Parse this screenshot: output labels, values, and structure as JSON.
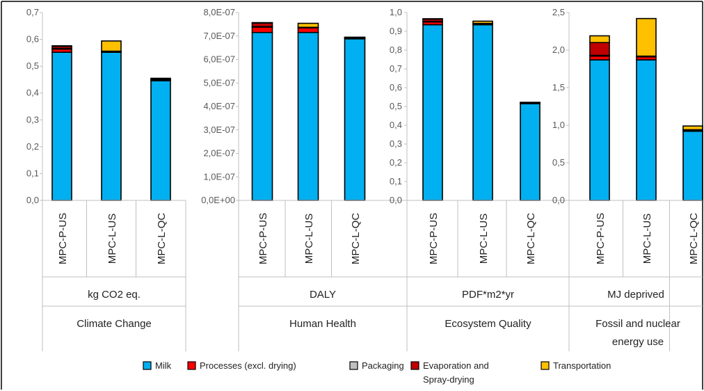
{
  "legend": [
    {
      "name": "Milk",
      "color": "#00B0F0"
    },
    {
      "name": "Processes (excl. drying)",
      "color": "#FF0000"
    },
    {
      "name": "Packaging",
      "color": "#BFBFBF"
    },
    {
      "name": "Evaporation and Spray-drying",
      "color": "#C00000"
    },
    {
      "name": "Transportation",
      "color": "#FFC000"
    }
  ],
  "chart_data": [
    {
      "type": "bar",
      "stacked": true,
      "title": "Climate Change",
      "unit": "kg CO2 eq.",
      "categories": [
        "MPC-P-US",
        "MPC-L-US",
        "MPC-L-QC"
      ],
      "ylim": [
        0,
        0.7
      ],
      "yticks": [
        "0,0",
        "0,1",
        "0,2",
        "0,3",
        "0,4",
        "0,5",
        "0,6",
        "0,7"
      ],
      "series": [
        {
          "name": "Milk",
          "values": [
            0.552,
            0.552,
            0.446
          ]
        },
        {
          "name": "Processes (excl. drying)",
          "values": [
            0.012,
            0.002,
            0.004
          ]
        },
        {
          "name": "Packaging",
          "values": [
            0.002,
            0.002,
            0.002
          ]
        },
        {
          "name": "Evaporation and Spray-drying",
          "values": [
            0.008,
            0.0,
            0.0
          ]
        },
        {
          "name": "Transportation",
          "values": [
            0.002,
            0.038,
            0.003
          ]
        }
      ]
    },
    {
      "type": "bar",
      "stacked": true,
      "title": "Human Health",
      "unit": "DALY",
      "categories": [
        "MPC-P-US",
        "MPC-L-US",
        "MPC-L-QC"
      ],
      "ylim": [
        0,
        8e-07
      ],
      "yticks": [
        "0,0E+00",
        "1,0E-07",
        "2,0E-07",
        "3,0E-07",
        "4,0E-07",
        "5,0E-07",
        "6,0E-07",
        "7,0E-07",
        "8,0E-07"
      ],
      "series": [
        {
          "name": "Milk",
          "values": [
            7.15e-07,
            7.15e-07,
            6.88e-07
          ]
        },
        {
          "name": "Processes (excl. drying)",
          "values": [
            2.3e-08,
            2e-08,
            5e-09
          ]
        },
        {
          "name": "Packaging",
          "values": [
            2e-09,
            2e-09,
            1e-09
          ]
        },
        {
          "name": "Evaporation and Spray-drying",
          "values": [
            1.5e-08,
            0.0,
            0.0
          ]
        },
        {
          "name": "Transportation",
          "values": [
            2e-09,
            1.7e-08,
            1e-09
          ]
        }
      ]
    },
    {
      "type": "bar",
      "stacked": true,
      "title": "Ecosystem Quality",
      "unit": "PDF*m2*yr",
      "categories": [
        "MPC-P-US",
        "MPC-L-US",
        "MPC-L-QC"
      ],
      "ylim": [
        0,
        1.0
      ],
      "yticks": [
        "0,0",
        "0,1",
        "0,2",
        "0,3",
        "0,4",
        "0,5",
        "0,6",
        "0,7",
        "0,8",
        "0,9",
        "1,0"
      ],
      "series": [
        {
          "name": "Milk",
          "values": [
            0.935,
            0.935,
            0.515
          ]
        },
        {
          "name": "Processes (excl. drying)",
          "values": [
            0.015,
            0.004,
            0.004
          ]
        },
        {
          "name": "Packaging",
          "values": [
            0.003,
            0.003,
            0.002
          ]
        },
        {
          "name": "Evaporation and Spray-drying",
          "values": [
            0.012,
            0.0,
            0.0
          ]
        },
        {
          "name": "Transportation",
          "values": [
            0.002,
            0.012,
            0.001
          ]
        }
      ]
    },
    {
      "type": "bar",
      "stacked": true,
      "title": "Fossil and nuclear energy use",
      "unit": "MJ deprived",
      "categories": [
        "MPC-P-US",
        "MPC-L-US",
        "MPC-L-QC"
      ],
      "ylim": [
        0,
        2.5
      ],
      "yticks": [
        "0,0",
        "0,5",
        "1,0",
        "1,5",
        "2,0",
        "2,5"
      ],
      "series": [
        {
          "name": "Milk",
          "values": [
            1.87,
            1.87,
            0.92
          ]
        },
        {
          "name": "Processes (excl. drying)",
          "values": [
            0.05,
            0.04,
            0.01
          ]
        },
        {
          "name": "Packaging",
          "values": [
            0.01,
            0.01,
            0.01
          ]
        },
        {
          "name": "Evaporation and Spray-drying",
          "values": [
            0.17,
            0.0,
            0.0
          ]
        },
        {
          "name": "Transportation",
          "values": [
            0.09,
            0.5,
            0.05
          ]
        }
      ]
    }
  ]
}
